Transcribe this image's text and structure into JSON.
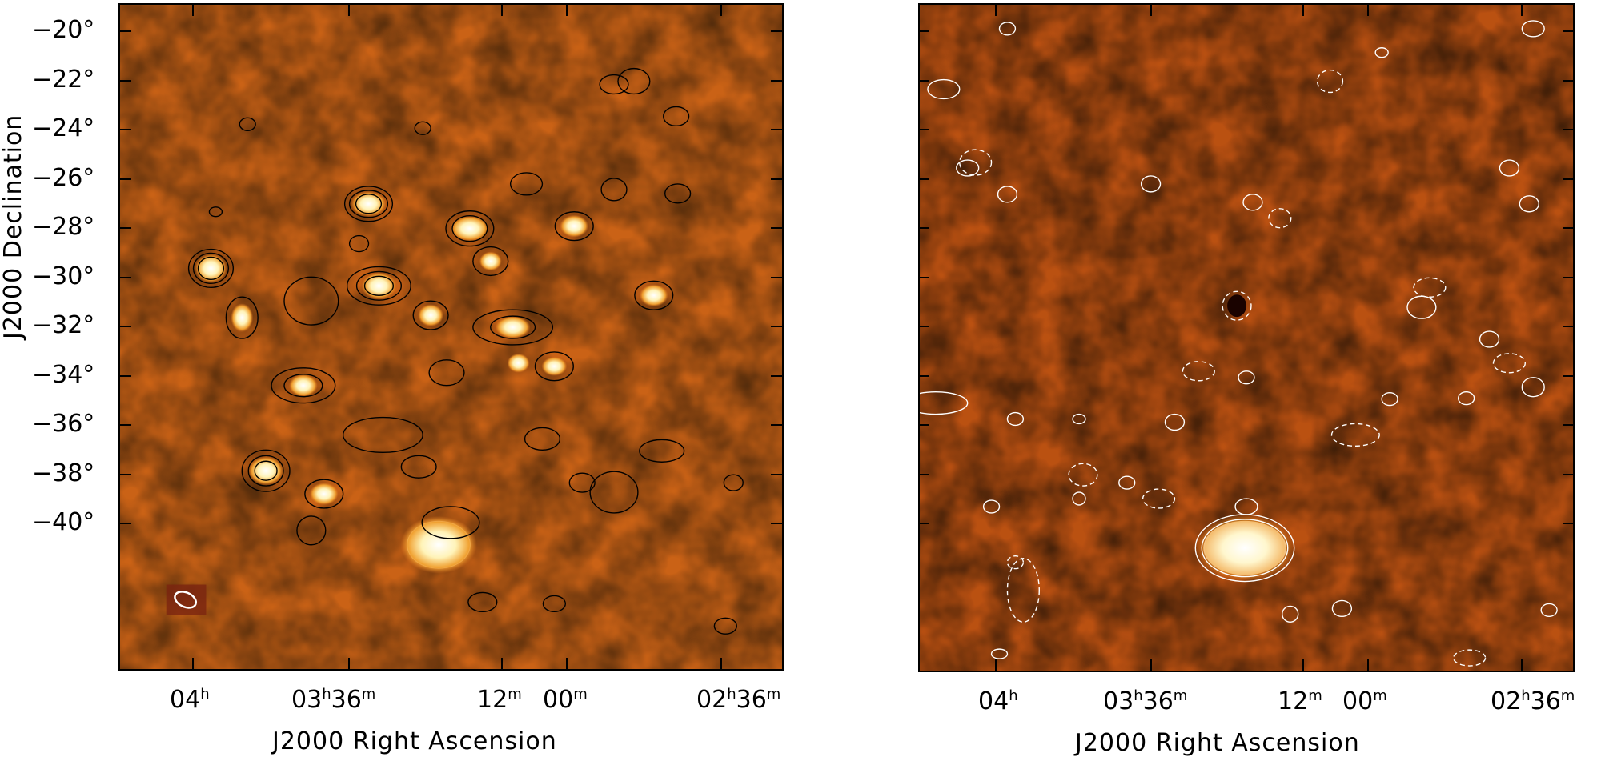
{
  "image": {
    "description_colors": {
      "background_dark": "#5a1505",
      "background_mid": "#b8470a",
      "background_bright": "#e07a20",
      "source_white": "#fffdf5",
      "contour_left": "#000000",
      "contour_right": "#ffffff"
    }
  },
  "axes": {
    "y_title": "J2000 Declination",
    "x_title_left": "J2000 Right Ascension",
    "x_title_right": "J2000 Right Ascension",
    "y_ticks": [
      "−20°",
      "−22°",
      "−24°",
      "−26°",
      "−28°",
      "−30°",
      "−32°",
      "−34°",
      "−36°",
      "−38°",
      "−40°"
    ],
    "x_ticks": [
      {
        "main": "04",
        "unit": "h",
        "extra": ""
      },
      {
        "main": "03",
        "unit": "h",
        "extra": "36",
        "extra_unit": "m"
      },
      {
        "main": "12",
        "unit": "m",
        "extra": "",
        "extra_unit": ""
      },
      {
        "main": "00",
        "unit": "m",
        "extra": "",
        "extra_unit": ""
      },
      {
        "main": "02",
        "unit": "h",
        "extra": "36",
        "extra_unit": "m"
      }
    ]
  }
}
